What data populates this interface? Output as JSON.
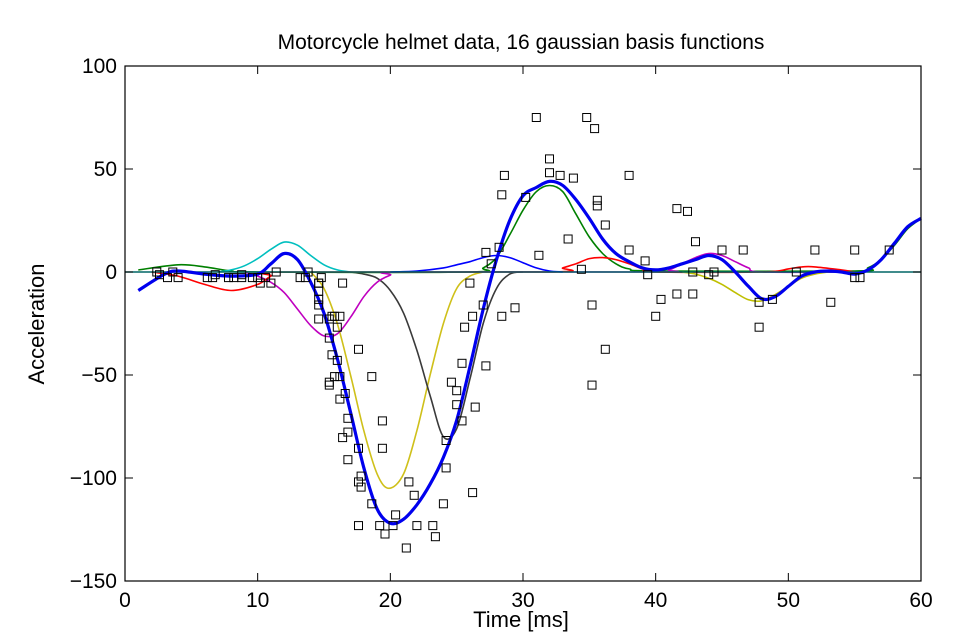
{
  "chart_data": {
    "type": "scatter",
    "title": "Motorcycle helmet data, 16 gaussian basis functions",
    "xlabel": "Time [ms]",
    "ylabel": "Acceleration",
    "xlim": [
      0,
      60
    ],
    "ylim": [
      -150,
      100
    ],
    "xticks": [
      0,
      10,
      20,
      30,
      40,
      50,
      60
    ],
    "yticks": [
      -150,
      -100,
      -50,
      0,
      50,
      100
    ],
    "grid": false,
    "legend": "none",
    "data_points": [
      [
        2.4,
        0
      ],
      [
        2.6,
        -1.3
      ],
      [
        3.2,
        -2.7
      ],
      [
        3.6,
        0
      ],
      [
        4.0,
        -2.7
      ],
      [
        6.2,
        -2.7
      ],
      [
        6.6,
        -2.7
      ],
      [
        6.8,
        -1.3
      ],
      [
        7.8,
        -2.7
      ],
      [
        8.2,
        -2.7
      ],
      [
        8.8,
        -1.3
      ],
      [
        8.8,
        -2.7
      ],
      [
        9.6,
        -2.7
      ],
      [
        10.0,
        -2.7
      ],
      [
        10.2,
        -5.4
      ],
      [
        10.6,
        -2.7
      ],
      [
        11.0,
        -5.4
      ],
      [
        11.4,
        0
      ],
      [
        13.2,
        -2.7
      ],
      [
        13.6,
        -2.7
      ],
      [
        13.8,
        0
      ],
      [
        14.6,
        -13.3
      ],
      [
        14.6,
        -5.4
      ],
      [
        14.6,
        -5.4
      ],
      [
        14.6,
        -9.3
      ],
      [
        14.6,
        -16
      ],
      [
        14.6,
        -22.8
      ],
      [
        14.8,
        -2.7
      ],
      [
        15.4,
        -22.8
      ],
      [
        15.4,
        -32.1
      ],
      [
        15.4,
        -53.5
      ],
      [
        15.4,
        -54.9
      ],
      [
        15.6,
        -40.2
      ],
      [
        15.6,
        -21.5
      ],
      [
        15.8,
        -21.5
      ],
      [
        15.8,
        -50.8
      ],
      [
        16.0,
        -42.9
      ],
      [
        16.0,
        -26.8
      ],
      [
        16.2,
        -21.5
      ],
      [
        16.2,
        -50.8
      ],
      [
        16.2,
        -61.7
      ],
      [
        16.4,
        -5.4
      ],
      [
        16.4,
        -80.4
      ],
      [
        16.6,
        -59
      ],
      [
        16.8,
        -71
      ],
      [
        16.8,
        -91.1
      ],
      [
        16.8,
        -77.7
      ],
      [
        17.6,
        -37.5
      ],
      [
        17.6,
        -85.6
      ],
      [
        17.6,
        -123.1
      ],
      [
        17.6,
        -101.9
      ],
      [
        17.8,
        -99.1
      ],
      [
        17.8,
        -104.4
      ],
      [
        18.6,
        -112.5
      ],
      [
        18.6,
        -50.8
      ],
      [
        19.2,
        -123.1
      ],
      [
        19.4,
        -85.6
      ],
      [
        19.4,
        -72.3
      ],
      [
        19.6,
        -127.2
      ],
      [
        20.2,
        -123.1
      ],
      [
        20.4,
        -117.9
      ],
      [
        21.2,
        -134
      ],
      [
        21.4,
        -101.9
      ],
      [
        21.8,
        -108.4
      ],
      [
        22.0,
        -123.1
      ],
      [
        23.2,
        -123.1
      ],
      [
        23.4,
        -128.5
      ],
      [
        24.0,
        -112.5
      ],
      [
        24.2,
        -95.1
      ],
      [
        24.2,
        -81.8
      ],
      [
        24.6,
        -53.5
      ],
      [
        25.0,
        -64.4
      ],
      [
        25.0,
        -57.6
      ],
      [
        25.4,
        -72.3
      ],
      [
        25.4,
        -44.3
      ],
      [
        25.6,
        -26.8
      ],
      [
        26.0,
        -5.4
      ],
      [
        26.2,
        -107.1
      ],
      [
        26.2,
        -21.5
      ],
      [
        26.4,
        -65.6
      ],
      [
        27.0,
        -16
      ],
      [
        27.2,
        -45.6
      ],
      [
        27.2,
        9.5
      ],
      [
        27.6,
        4
      ],
      [
        28.2,
        12
      ],
      [
        28.4,
        -21.5
      ],
      [
        28.4,
        37.5
      ],
      [
        28.6,
        46.9
      ],
      [
        29.4,
        -17.4
      ],
      [
        30.2,
        36.2
      ],
      [
        31.0,
        75
      ],
      [
        31.2,
        8.1
      ],
      [
        32.0,
        54.9
      ],
      [
        32.0,
        48.2
      ],
      [
        32.8,
        46.9
      ],
      [
        33.4,
        16
      ],
      [
        33.8,
        45.6
      ],
      [
        34.4,
        1.3
      ],
      [
        34.8,
        75
      ],
      [
        35.2,
        -16
      ],
      [
        35.2,
        -54.9
      ],
      [
        35.4,
        69.6
      ],
      [
        35.6,
        34.8
      ],
      [
        35.6,
        32.1
      ],
      [
        36.2,
        -37.5
      ],
      [
        36.2,
        22.8
      ],
      [
        38.0,
        46.9
      ],
      [
        38.0,
        10.7
      ],
      [
        39.2,
        5.4
      ],
      [
        39.4,
        -1.3
      ],
      [
        40.0,
        -21.5
      ],
      [
        40.4,
        -13.3
      ],
      [
        41.6,
        30.8
      ],
      [
        41.6,
        -10.7
      ],
      [
        42.4,
        29.4
      ],
      [
        42.8,
        0
      ],
      [
        42.8,
        -10.7
      ],
      [
        43.0,
        14.7
      ],
      [
        44.0,
        -1.3
      ],
      [
        44.4,
        0
      ],
      [
        45.0,
        10.7
      ],
      [
        46.6,
        10.7
      ],
      [
        47.8,
        -26.8
      ],
      [
        47.8,
        -14.7
      ],
      [
        48.8,
        -13.3
      ],
      [
        50.6,
        0
      ],
      [
        52.0,
        10.7
      ],
      [
        53.2,
        -14.7
      ],
      [
        55.0,
        -2.7
      ],
      [
        55.0,
        10.7
      ],
      [
        55.4,
        -2.7
      ],
      [
        57.6,
        10.7
      ]
    ],
    "series": [
      {
        "color": "#0000ee",
        "points": [
          [
            1,
            -9
          ],
          [
            3,
            -1
          ],
          [
            4,
            0.5
          ],
          [
            6,
            -1
          ],
          [
            8,
            -2
          ],
          [
            10,
            -1
          ],
          [
            11,
            4
          ],
          [
            12,
            9
          ],
          [
            13,
            6
          ],
          [
            14,
            -5
          ],
          [
            15,
            -20
          ],
          [
            16,
            -42
          ],
          [
            17,
            -68
          ],
          [
            18,
            -95
          ],
          [
            19,
            -115
          ],
          [
            20,
            -122
          ],
          [
            21,
            -120
          ],
          [
            22,
            -113
          ],
          [
            23,
            -103
          ],
          [
            24,
            -90
          ],
          [
            25,
            -72
          ],
          [
            26,
            -46
          ],
          [
            27,
            -18
          ],
          [
            28,
            6
          ],
          [
            29,
            25
          ],
          [
            30,
            37
          ],
          [
            31,
            41
          ],
          [
            32,
            44
          ],
          [
            33,
            42
          ],
          [
            34,
            35
          ],
          [
            35,
            26
          ],
          [
            36,
            16
          ],
          [
            37,
            9
          ],
          [
            38,
            5
          ],
          [
            39,
            2
          ],
          [
            40,
            1
          ],
          [
            41,
            2
          ],
          [
            42,
            4
          ],
          [
            43,
            6
          ],
          [
            44,
            8
          ],
          [
            45,
            6
          ],
          [
            46,
            0
          ],
          [
            47,
            -7
          ],
          [
            48,
            -13
          ],
          [
            49,
            -12
          ],
          [
            50,
            -7
          ],
          [
            51,
            -2
          ],
          [
            52,
            0
          ],
          [
            53,
            0.5
          ],
          [
            54,
            0
          ],
          [
            55,
            -1
          ],
          [
            56,
            1
          ],
          [
            57,
            6
          ],
          [
            58,
            14
          ],
          [
            59,
            22
          ],
          [
            60,
            26
          ]
        ]
      },
      {
        "color": "#cfc01a",
        "points": [
          [
            14,
            0
          ],
          [
            15,
            -8
          ],
          [
            16,
            -25
          ],
          [
            17,
            -50
          ],
          [
            18,
            -77
          ],
          [
            19,
            -98
          ],
          [
            19.9,
            -105
          ],
          [
            21,
            -98
          ],
          [
            22,
            -77
          ],
          [
            23,
            -50
          ],
          [
            24,
            -25
          ],
          [
            25,
            -8
          ],
          [
            26,
            -2
          ],
          [
            27,
            0
          ]
        ]
      },
      {
        "color": "#3a3a3a",
        "points": [
          [
            17,
            0
          ],
          [
            18,
            -1
          ],
          [
            19,
            -3
          ],
          [
            20,
            -9
          ],
          [
            21,
            -20
          ],
          [
            22,
            -38
          ],
          [
            23,
            -60
          ],
          [
            24,
            -80
          ],
          [
            25,
            -76
          ],
          [
            26,
            -52
          ],
          [
            27,
            -25
          ],
          [
            28,
            -8
          ],
          [
            29,
            -1
          ],
          [
            30,
            0
          ]
        ]
      },
      {
        "color": "#008000",
        "points": [
          [
            1,
            1
          ],
          [
            4,
            3.5
          ],
          [
            6,
            2.5
          ],
          [
            8,
            0.5
          ],
          [
            10,
            0
          ],
          [
            26,
            0
          ],
          [
            27,
            2
          ],
          [
            28,
            7
          ],
          [
            29,
            18
          ],
          [
            30,
            30
          ],
          [
            31,
            39
          ],
          [
            32,
            42
          ],
          [
            33,
            39
          ],
          [
            34,
            28
          ],
          [
            35,
            17
          ],
          [
            36,
            9
          ],
          [
            37,
            4
          ],
          [
            38,
            1.5
          ],
          [
            40,
            0.5
          ],
          [
            55,
            0.5
          ],
          [
            56,
            2
          ],
          [
            57,
            6
          ],
          [
            58,
            13
          ],
          [
            59,
            21
          ],
          [
            60,
            26
          ]
        ]
      },
      {
        "color": "#00bfbf",
        "points": [
          [
            7,
            0
          ],
          [
            8,
            1
          ],
          [
            9,
            3
          ],
          [
            10,
            6.5
          ],
          [
            11,
            11
          ],
          [
            12,
            14.5
          ],
          [
            13,
            13
          ],
          [
            14,
            8
          ],
          [
            15,
            3.5
          ],
          [
            16,
            1
          ],
          [
            17,
            0
          ]
        ]
      },
      {
        "color": "#bf00bf",
        "points": [
          [
            9,
            0
          ],
          [
            10,
            -2
          ],
          [
            11,
            -5
          ],
          [
            12,
            -10
          ],
          [
            13,
            -18
          ],
          [
            14,
            -26
          ],
          [
            15,
            -31
          ],
          [
            16,
            -30
          ],
          [
            17,
            -22
          ],
          [
            18,
            -12
          ],
          [
            19,
            -5
          ],
          [
            20,
            -1.5
          ],
          [
            21,
            0
          ],
          [
            40,
            0
          ],
          [
            41,
            1
          ],
          [
            42,
            4
          ],
          [
            43,
            7
          ],
          [
            44,
            9
          ],
          [
            45,
            8
          ],
          [
            46,
            5
          ],
          [
            47,
            2
          ],
          [
            48,
            0
          ],
          [
            55,
            0
          ]
        ]
      },
      {
        "color": "#ff0000",
        "points": [
          [
            2,
            0
          ],
          [
            4,
            -2
          ],
          [
            6,
            -6
          ],
          [
            8,
            -9
          ],
          [
            10,
            -6
          ],
          [
            11,
            -2
          ],
          [
            12,
            0
          ],
          [
            32,
            0
          ],
          [
            33,
            2
          ],
          [
            34,
            4
          ],
          [
            35,
            6.5
          ],
          [
            36,
            7
          ],
          [
            37,
            6
          ],
          [
            38,
            4
          ],
          [
            39,
            1.5
          ],
          [
            40,
            0
          ],
          [
            48,
            0
          ],
          [
            50,
            1.5
          ],
          [
            51,
            2.5
          ],
          [
            52,
            2.5
          ],
          [
            54,
            1
          ],
          [
            55,
            0
          ]
        ]
      },
      {
        "color": "#bfbf00",
        "points": [
          [
            42,
            0
          ],
          [
            43,
            -1
          ],
          [
            44,
            -3
          ],
          [
            45,
            -6
          ],
          [
            46,
            -10
          ],
          [
            47,
            -13.5
          ],
          [
            48,
            -14
          ],
          [
            49,
            -11
          ],
          [
            50,
            -7
          ],
          [
            51,
            -3
          ],
          [
            52,
            -1
          ],
          [
            53,
            0
          ]
        ]
      },
      {
        "color": "#0000ff",
        "points": [
          [
            20,
            0
          ],
          [
            22,
            0.5
          ],
          [
            24,
            2
          ],
          [
            25,
            3.5
          ],
          [
            26,
            5
          ],
          [
            27,
            7
          ],
          [
            28,
            8
          ],
          [
            29,
            7
          ],
          [
            30,
            4.5
          ],
          [
            31,
            2
          ],
          [
            32,
            0.5
          ],
          [
            33,
            0
          ]
        ]
      },
      {
        "color": "#006666",
        "points": [
          [
            0,
            0
          ],
          [
            60,
            0
          ]
        ]
      }
    ]
  }
}
